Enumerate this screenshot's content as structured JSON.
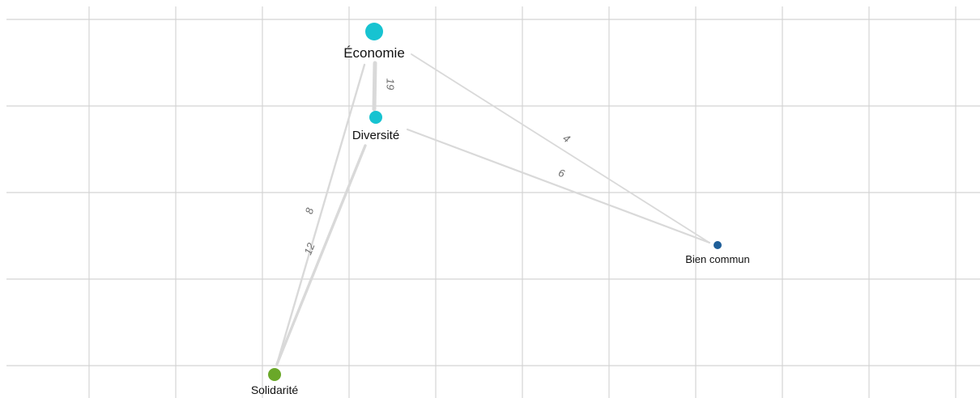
{
  "graph": {
    "nodes": [
      {
        "id": "economie",
        "label": "Économie",
        "color": "#17c3d1",
        "size": "large"
      },
      {
        "id": "diversite",
        "label": "Diversité",
        "color": "#17c3d1",
        "size": "medium"
      },
      {
        "id": "bien_commun",
        "label": "Bien commun",
        "color": "#1f5f99",
        "size": "small"
      },
      {
        "id": "solidarite",
        "label": "Solidarité",
        "color": "#6aa829",
        "size": "medium"
      }
    ],
    "edges": [
      {
        "source": "economie",
        "target": "diversite",
        "weight": 19
      },
      {
        "source": "economie",
        "target": "bien_commun",
        "weight": 4
      },
      {
        "source": "diversite",
        "target": "bien_commun",
        "weight": 6
      },
      {
        "source": "economie",
        "target": "solidarite",
        "weight": 8
      },
      {
        "source": "diversite",
        "target": "solidarite",
        "weight": 12
      }
    ]
  }
}
